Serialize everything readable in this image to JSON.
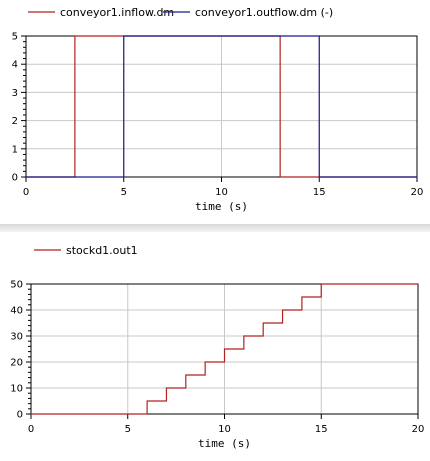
{
  "chart_data": [
    {
      "type": "line",
      "step": true,
      "xlabel": "time (s)",
      "ylabel": "",
      "xlim": [
        0,
        20
      ],
      "ylim": [
        0,
        5
      ],
      "x_ticks": [
        0,
        5,
        10,
        15,
        20
      ],
      "y_ticks": [
        0,
        1,
        2,
        3,
        4,
        5
      ],
      "grid": true,
      "legend_placement": "top",
      "series": [
        {
          "name": "conveyor1.inflow.dm",
          "color": "#b22222",
          "points": [
            [
              0,
              0
            ],
            [
              2.5,
              0
            ],
            [
              2.5,
              5
            ],
            [
              13,
              5
            ],
            [
              13,
              0
            ],
            [
              20,
              0
            ]
          ]
        },
        {
          "name": "conveyor1.outflow.dm (-)",
          "color": "#1a1a8c",
          "points": [
            [
              0,
              0
            ],
            [
              5,
              0
            ],
            [
              5,
              5
            ],
            [
              15,
              5
            ],
            [
              15,
              0
            ],
            [
              20,
              0
            ]
          ]
        }
      ]
    },
    {
      "type": "line",
      "step": true,
      "xlabel": "time (s)",
      "ylabel": "",
      "xlim": [
        0,
        20
      ],
      "ylim": [
        0,
        50
      ],
      "x_ticks": [
        0,
        5,
        10,
        15,
        20
      ],
      "y_ticks": [
        0,
        10,
        20,
        30,
        40,
        50
      ],
      "grid": true,
      "legend_placement": "top-left",
      "series": [
        {
          "name": "stockd1.out1",
          "color": "#b22222",
          "points": [
            [
              0,
              0
            ],
            [
              6,
              0
            ],
            [
              6,
              5
            ],
            [
              7,
              5
            ],
            [
              7,
              10
            ],
            [
              8,
              10
            ],
            [
              8,
              15
            ],
            [
              9,
              15
            ],
            [
              9,
              20
            ],
            [
              10,
              20
            ],
            [
              10,
              25
            ],
            [
              11,
              25
            ],
            [
              11,
              30
            ],
            [
              12,
              30
            ],
            [
              12,
              35
            ],
            [
              13,
              35
            ],
            [
              13,
              40
            ],
            [
              14,
              40
            ],
            [
              14,
              45
            ],
            [
              15,
              45
            ],
            [
              15,
              50
            ],
            [
              20,
              50
            ]
          ]
        }
      ]
    }
  ]
}
